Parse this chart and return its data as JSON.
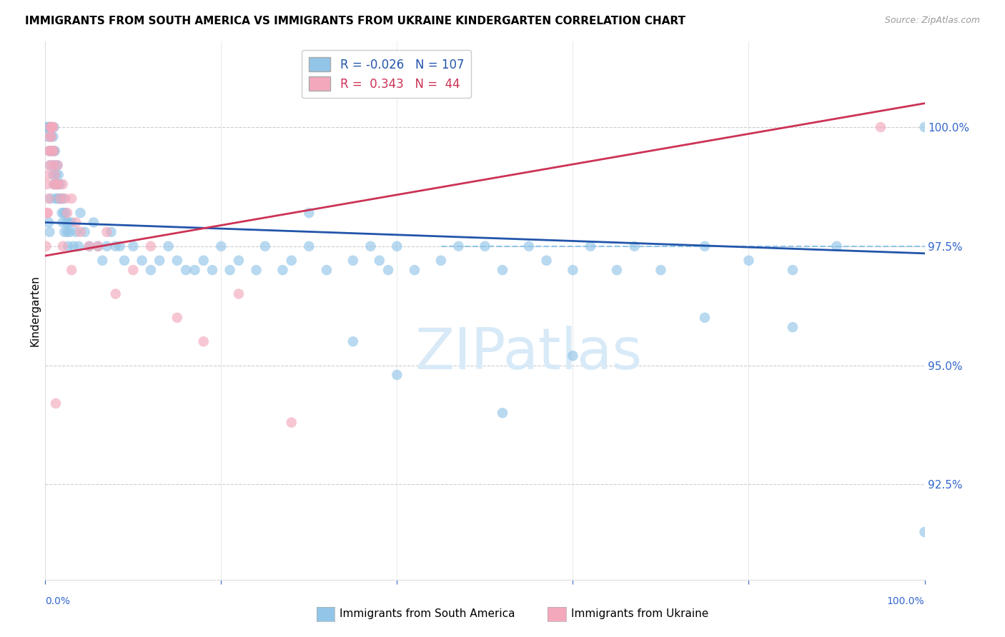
{
  "title": "IMMIGRANTS FROM SOUTH AMERICA VS IMMIGRANTS FROM UKRAINE KINDERGARTEN CORRELATION CHART",
  "source": "Source: ZipAtlas.com",
  "ylabel": "Kindergarten",
  "right_yticks": [
    92.5,
    95.0,
    97.5,
    100.0
  ],
  "right_ytick_labels": [
    "92.5%",
    "95.0%",
    "97.5%",
    "100.0%"
  ],
  "xmin": 0.0,
  "xmax": 100.0,
  "ymin": 90.5,
  "ymax": 101.8,
  "legend_blue_R": "-0.026",
  "legend_blue_N": "107",
  "legend_pink_R": "0.343",
  "legend_pink_N": "44",
  "blue_color": "#92C5E8",
  "pink_color": "#F4A8BC",
  "blue_line_color": "#2255AA",
  "pink_line_color": "#CC3355",
  "dashed_line_color": "#92C5E8",
  "dashed_line_y": 97.5,
  "watermark_color": "#D8EAF8",
  "blue_scatter_x": [
    0.2,
    0.3,
    0.3,
    0.4,
    0.5,
    0.5,
    0.6,
    0.6,
    0.7,
    0.7,
    0.8,
    0.8,
    0.9,
    0.9,
    1.0,
    1.0,
    1.0,
    1.1,
    1.1,
    1.2,
    1.2,
    1.3,
    1.4,
    1.4,
    1.5,
    1.5,
    1.6,
    1.7,
    1.8,
    1.9,
    2.0,
    2.0,
    2.1,
    2.2,
    2.3,
    2.4,
    2.5,
    2.6,
    2.7,
    2.8,
    3.0,
    3.2,
    3.5,
    3.8,
    4.0,
    4.5,
    5.0,
    5.5,
    6.0,
    6.5,
    7.0,
    7.5,
    8.0,
    8.5,
    9.0,
    10.0,
    11.0,
    12.0,
    13.0,
    14.0,
    15.0,
    16.0,
    17.0,
    18.0,
    19.0,
    20.0,
    21.0,
    22.0,
    24.0,
    25.0,
    27.0,
    28.0,
    30.0,
    32.0,
    35.0,
    37.0,
    38.0,
    39.0,
    40.0,
    42.0,
    45.0,
    47.0,
    50.0,
    52.0,
    55.0,
    57.0,
    60.0,
    62.0,
    65.0,
    67.0,
    70.0,
    75.0,
    80.0,
    85.0,
    90.0,
    100.0,
    35.0,
    40.0,
    30.0,
    52.0,
    60.0,
    75.0,
    85.0,
    100.0,
    0.4,
    0.5,
    0.6
  ],
  "blue_scatter_y": [
    100.0,
    99.8,
    100.0,
    100.0,
    99.5,
    100.0,
    99.2,
    100.0,
    99.8,
    100.0,
    99.5,
    100.0,
    99.0,
    99.8,
    99.5,
    100.0,
    98.8,
    99.2,
    99.5,
    98.5,
    99.0,
    98.8,
    99.2,
    98.5,
    99.0,
    98.8,
    98.5,
    98.8,
    98.5,
    98.2,
    98.5,
    98.0,
    98.2,
    97.8,
    98.2,
    98.0,
    97.8,
    97.5,
    98.0,
    97.8,
    98.0,
    97.5,
    97.8,
    97.5,
    98.2,
    97.8,
    97.5,
    98.0,
    97.5,
    97.2,
    97.5,
    97.8,
    97.5,
    97.5,
    97.2,
    97.5,
    97.2,
    97.0,
    97.2,
    97.5,
    97.2,
    97.0,
    97.0,
    97.2,
    97.0,
    97.5,
    97.0,
    97.2,
    97.0,
    97.5,
    97.0,
    97.2,
    97.5,
    97.0,
    97.2,
    97.5,
    97.2,
    97.0,
    97.5,
    97.0,
    97.2,
    97.5,
    97.5,
    97.0,
    97.5,
    97.2,
    97.0,
    97.5,
    97.0,
    97.5,
    97.0,
    97.5,
    97.2,
    97.0,
    97.5,
    100.0,
    95.5,
    94.8,
    98.2,
    94.0,
    95.2,
    96.0,
    95.8,
    91.5,
    98.0,
    97.8,
    98.5
  ],
  "pink_scatter_x": [
    0.1,
    0.2,
    0.2,
    0.3,
    0.3,
    0.4,
    0.4,
    0.5,
    0.5,
    0.6,
    0.6,
    0.7,
    0.7,
    0.8,
    0.8,
    0.9,
    0.9,
    1.0,
    1.0,
    1.1,
    1.2,
    1.4,
    1.5,
    1.7,
    2.0,
    2.3,
    2.5,
    3.0,
    3.5,
    4.0,
    5.0,
    6.0,
    7.0,
    8.0,
    10.0,
    12.0,
    15.0,
    18.0,
    22.0,
    28.0,
    2.0,
    3.0,
    1.2,
    95.0
  ],
  "pink_scatter_y": [
    97.5,
    98.2,
    98.8,
    98.2,
    99.0,
    99.5,
    98.5,
    99.8,
    99.2,
    100.0,
    99.5,
    100.0,
    99.8,
    100.0,
    99.5,
    100.0,
    99.2,
    99.5,
    98.8,
    99.0,
    98.8,
    99.2,
    98.8,
    98.5,
    98.8,
    98.5,
    98.2,
    98.5,
    98.0,
    97.8,
    97.5,
    97.5,
    97.8,
    96.5,
    97.0,
    97.5,
    96.0,
    95.5,
    96.5,
    93.8,
    97.5,
    97.0,
    94.2,
    100.0
  ],
  "blue_reg_x0": 0.0,
  "blue_reg_x1": 100.0,
  "blue_reg_y0": 98.0,
  "blue_reg_y1": 97.35,
  "pink_reg_x0": 0.0,
  "pink_reg_x1": 100.0,
  "pink_reg_y0": 97.3,
  "pink_reg_y1": 100.5
}
